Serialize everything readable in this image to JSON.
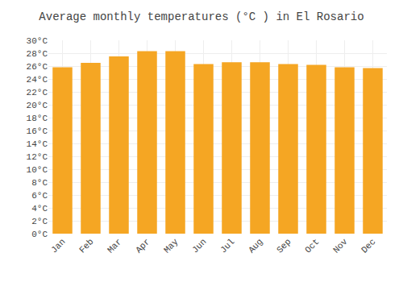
{
  "chart_data": {
    "type": "bar",
    "title": "Average monthly temperatures (°C ) in El Rosario",
    "categories": [
      "Jan",
      "Feb",
      "Mar",
      "Apr",
      "May",
      "Jun",
      "Jul",
      "Aug",
      "Sep",
      "Oct",
      "Nov",
      "Dec"
    ],
    "values": [
      25.8,
      26.5,
      27.5,
      28.3,
      28.3,
      26.3,
      26.6,
      26.6,
      26.3,
      26.2,
      25.8,
      25.7
    ],
    "color": "#F5A623",
    "ylim": [
      0,
      30
    ],
    "yticks": [
      {
        "value": 0,
        "label": "0°C"
      },
      {
        "value": 2,
        "label": "2°C"
      },
      {
        "value": 4,
        "label": "4°C"
      },
      {
        "value": 6,
        "label": "6°C"
      },
      {
        "value": 8,
        "label": "8°C"
      },
      {
        "value": 10,
        "label": "10°C"
      },
      {
        "value": 12,
        "label": "12°C"
      },
      {
        "value": 14,
        "label": "14°C"
      },
      {
        "value": 16,
        "label": "16°C"
      },
      {
        "value": 18,
        "label": "18°C"
      },
      {
        "value": 20,
        "label": "20°C"
      },
      {
        "value": 22,
        "label": "22°C"
      },
      {
        "value": 24,
        "label": "24°C"
      },
      {
        "value": 26,
        "label": "26°C"
      },
      {
        "value": 28,
        "label": "28°C"
      },
      {
        "value": 30,
        "label": "30°C"
      }
    ],
    "grid": true
  }
}
